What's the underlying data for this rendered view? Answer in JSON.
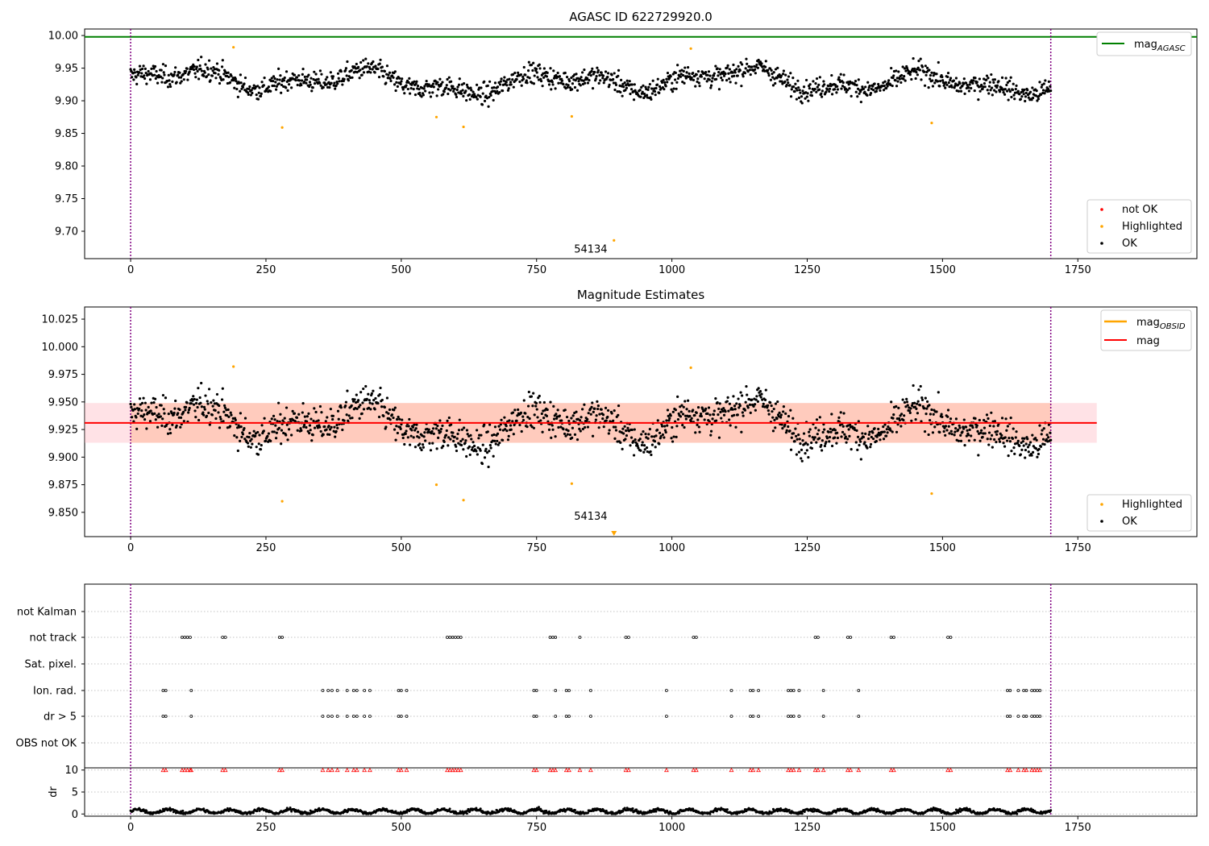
{
  "chart_data": [
    {
      "type": "scatter",
      "title": "AGASC ID 622729920.0",
      "xlim": [
        -85,
        1970
      ],
      "ylim": [
        9.658,
        10.01
      ],
      "xticks": [
        "0",
        "250",
        "500",
        "750",
        "1000",
        "1250",
        "1500",
        "1750"
      ],
      "yticks": [
        "9.70",
        "9.75",
        "9.80",
        "9.85",
        "9.90",
        "9.95",
        "10.00"
      ],
      "ok_points": {
        "x_range": [
          0,
          1700
        ],
        "baseline_mag": 9.93,
        "spread": 0.02,
        "count": 1500
      },
      "highlighted": [
        {
          "x": 190,
          "y": 9.982
        },
        {
          "x": 280,
          "y": 9.859
        },
        {
          "x": 565,
          "y": 9.875
        },
        {
          "x": 615,
          "y": 9.86
        },
        {
          "x": 815,
          "y": 9.876
        },
        {
          "x": 893,
          "y": 9.686
        },
        {
          "x": 1035,
          "y": 9.98
        },
        {
          "x": 1480,
          "y": 9.866
        }
      ],
      "annotation": {
        "text": "54134",
        "x": 850,
        "y": 9.672
      },
      "mag_agasc": 9.998,
      "vlines": [
        0,
        1700
      ],
      "legend_lines": [
        {
          "label": "mag",
          "sub": "AGASC",
          "color": "#008000"
        }
      ],
      "legend_points": [
        {
          "label": "not OK",
          "color": "#ff0000"
        },
        {
          "label": "Highlighted",
          "color": "#ffa500"
        },
        {
          "label": "OK",
          "color": "#000000"
        }
      ]
    },
    {
      "type": "scatter",
      "title": "Magnitude Estimates",
      "xlim": [
        -85,
        1970
      ],
      "ylim": [
        9.828,
        10.036
      ],
      "xticks": [
        "0",
        "250",
        "500",
        "750",
        "1000",
        "1250",
        "1500",
        "1750"
      ],
      "yticks": [
        "9.850",
        "9.875",
        "9.900",
        "9.925",
        "9.950",
        "9.975",
        "10.000",
        "10.025"
      ],
      "mag": 9.931,
      "band_inner": [
        9.913,
        9.949
      ],
      "band_x": [
        -85,
        1785
      ],
      "highlighted": [
        {
          "x": 190,
          "y": 9.982
        },
        {
          "x": 280,
          "y": 9.86
        },
        {
          "x": 565,
          "y": 9.875
        },
        {
          "x": 615,
          "y": 9.861
        },
        {
          "x": 815,
          "y": 9.876
        },
        {
          "x": 1035,
          "y": 9.981
        },
        {
          "x": 1480,
          "y": 9.867
        }
      ],
      "offscale_marker": {
        "x": 893,
        "y": 9.83
      },
      "annotation": {
        "text": "54134",
        "x": 850,
        "y": 9.836
      },
      "vlines": [
        0,
        1700
      ],
      "legend_lines": [
        {
          "label": "mag",
          "sub": "OBSID",
          "color": "#ffa500"
        },
        {
          "label": "mag",
          "sub": "",
          "color": "#ff0000"
        }
      ],
      "legend_points": [
        {
          "label": "Highlighted",
          "color": "#ffa500"
        },
        {
          "label": "OK",
          "color": "#000000"
        }
      ]
    },
    {
      "type": "scatter",
      "xlim": [
        -85,
        1970
      ],
      "xticks": [
        "0",
        "250",
        "500",
        "750",
        "1000",
        "1250",
        "1500",
        "1750"
      ],
      "flag_rows": [
        "not Kalman",
        "not track",
        "Sat. pixel.",
        "Ion. rad.",
        "dr > 5",
        "OBS not OK"
      ],
      "flag_points": {
        "not track": [
          95,
          100,
          105,
          110,
          170,
          175,
          275,
          280,
          585,
          590,
          595,
          600,
          605,
          610,
          775,
          780,
          785,
          830,
          915,
          920,
          1040,
          1045,
          1265,
          1270,
          1325,
          1330,
          1405,
          1410,
          1510,
          1515
        ],
        "Ion. rad.": [
          60,
          65,
          112,
          355,
          365,
          372,
          382,
          400,
          412,
          418,
          432,
          442,
          495,
          500,
          510,
          745,
          750,
          785,
          805,
          810,
          850,
          990,
          1110,
          1145,
          1150,
          1160,
          1215,
          1220,
          1225,
          1235,
          1280,
          1345,
          1620,
          1625,
          1640,
          1650,
          1655,
          1665,
          1670,
          1675,
          1680
        ],
        "dr > 5": [
          60,
          65,
          112,
          355,
          365,
          372,
          382,
          400,
          412,
          418,
          432,
          442,
          495,
          500,
          510,
          745,
          750,
          785,
          805,
          810,
          850,
          990,
          1110,
          1145,
          1150,
          1160,
          1215,
          1220,
          1225,
          1235,
          1280,
          1345,
          1620,
          1625,
          1640,
          1650,
          1655,
          1665,
          1670,
          1675,
          1680
        ]
      },
      "dr": {
        "ylabel": "dr",
        "ylim": [
          -0.5,
          10.5
        ],
        "yticks": [
          "0",
          "5",
          "10"
        ],
        "baseline": 0.6,
        "not_ok_x": [
          60,
          65,
          95,
          100,
          105,
          110,
          112,
          170,
          175,
          275,
          280,
          355,
          365,
          372,
          382,
          400,
          412,
          418,
          432,
          442,
          495,
          500,
          510,
          585,
          590,
          595,
          600,
          605,
          610,
          745,
          750,
          775,
          780,
          785,
          805,
          810,
          830,
          850,
          915,
          920,
          990,
          1040,
          1045,
          1110,
          1145,
          1150,
          1160,
          1215,
          1220,
          1225,
          1235,
          1265,
          1270,
          1280,
          1325,
          1330,
          1345,
          1405,
          1410,
          1510,
          1515,
          1620,
          1625,
          1640,
          1650,
          1655,
          1665,
          1670,
          1675,
          1680
        ]
      },
      "vlines": [
        0,
        1700
      ]
    }
  ]
}
